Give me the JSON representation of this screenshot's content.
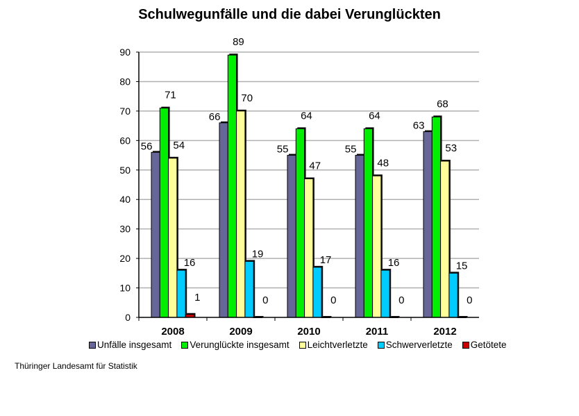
{
  "chart_data": {
    "type": "bar",
    "title": "Schulwegunfälle und die dabei Verunglückten",
    "xlabel": "",
    "ylabel": "",
    "ylim": [
      0,
      90
    ],
    "yticks": [
      0,
      10,
      20,
      30,
      40,
      50,
      60,
      70,
      80,
      90
    ],
    "grid": true,
    "legend": "bottom",
    "categories": [
      "2008",
      "2009",
      "2010",
      "2011",
      "2012"
    ],
    "series": [
      {
        "name": "Unfälle insgesamt",
        "color": "#666699",
        "values": [
          56,
          66,
          55,
          55,
          63
        ]
      },
      {
        "name": "Verunglückte insgesamt",
        "color": "#00ee00",
        "values": [
          71,
          89,
          64,
          64,
          68
        ]
      },
      {
        "name": "Leichtverletzte",
        "color": "#ffff99",
        "values": [
          54,
          70,
          47,
          48,
          53
        ]
      },
      {
        "name": "Schwerverletzte",
        "color": "#00ccff",
        "values": [
          16,
          19,
          17,
          16,
          15
        ]
      },
      {
        "name": "Getötete",
        "color": "#cc0000",
        "values": [
          1,
          0,
          0,
          0,
          0
        ]
      }
    ]
  },
  "source": "Thüringer Landesamt für Statistik"
}
